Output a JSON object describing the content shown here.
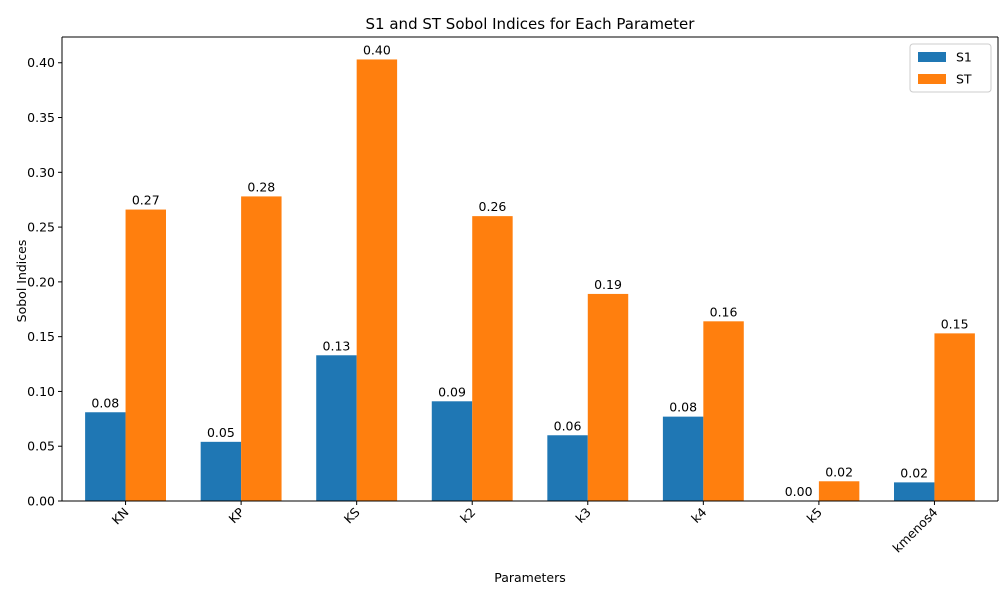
{
  "chart_data": {
    "type": "bar",
    "title": "S1 and ST Sobol Indices for Each Parameter",
    "xlabel": "Parameters",
    "ylabel": "Sobol Indices",
    "categories": [
      "KN",
      "KP",
      "KS",
      "k2",
      "k3",
      "k4",
      "k5",
      "kmenos4"
    ],
    "series": [
      {
        "name": "S1",
        "color": "#1f77b4",
        "values": [
          0.081,
          0.054,
          0.133,
          0.091,
          0.06,
          0.077,
          0.0,
          0.017
        ],
        "labels": [
          "0.08",
          "0.05",
          "0.13",
          "0.09",
          "0.06",
          "0.08",
          "0.00",
          "0.02"
        ]
      },
      {
        "name": "ST",
        "color": "#ff7f0e",
        "values": [
          0.266,
          0.278,
          0.403,
          0.26,
          0.189,
          0.164,
          0.018,
          0.153
        ],
        "labels": [
          "0.27",
          "0.28",
          "0.40",
          "0.26",
          "0.19",
          "0.16",
          "0.02",
          "0.15"
        ]
      }
    ],
    "ylim": [
      0,
      0.4235
    ],
    "yticks": [
      "0.00",
      "0.05",
      "0.10",
      "0.15",
      "0.20",
      "0.25",
      "0.30",
      "0.35",
      "0.40"
    ],
    "grid": false,
    "legend": "top-right"
  }
}
